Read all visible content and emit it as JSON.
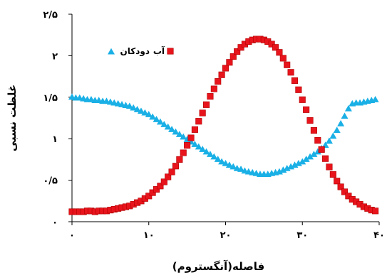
{
  "chart_data": {
    "type": "scatter",
    "xlabel": "فاصله(آنگستروم)",
    "ylabel": "غلظت نسبی",
    "xlim": [
      0,
      40
    ],
    "ylim": [
      0,
      2.5
    ],
    "x_ticks": [
      0,
      10,
      20,
      30,
      40
    ],
    "x_tick_labels": [
      "۰",
      "۱۰",
      "۲۰",
      "۳۰",
      "۴۰"
    ],
    "y_ticks": [
      0,
      0.5,
      1,
      1.5,
      2,
      2.5
    ],
    "y_tick_labels": [
      "۰",
      "۰/۵",
      "۱",
      "۱/۵",
      "۲",
      "۲/۵"
    ],
    "grid": false,
    "legend_position": "top-left",
    "series": [
      {
        "name": "آب",
        "marker": "square",
        "color": "#e8141c",
        "x": [
          0,
          0.5,
          1,
          1.5,
          2,
          2.5,
          3,
          3.5,
          4,
          4.5,
          5,
          5.5,
          6,
          6.5,
          7,
          7.5,
          8,
          8.5,
          9,
          9.5,
          10,
          10.5,
          11,
          11.5,
          12,
          12.5,
          13,
          13.5,
          14,
          14.5,
          15,
          15.5,
          16,
          16.5,
          17,
          17.5,
          18,
          18.5,
          19,
          19.5,
          20,
          20.5,
          21,
          21.5,
          22,
          22.5,
          23,
          23.5,
          24,
          24.5,
          25,
          25.5,
          26,
          26.5,
          27,
          27.5,
          28,
          28.5,
          29,
          29.5,
          30,
          30.5,
          31,
          31.5,
          32,
          32.5,
          33,
          33.5,
          34,
          34.5,
          35,
          35.5,
          36,
          36.5,
          37,
          37.5,
          38,
          38.5,
          39,
          39.5
        ],
        "y": [
          0.12,
          0.12,
          0.12,
          0.12,
          0.13,
          0.13,
          0.12,
          0.13,
          0.13,
          0.13,
          0.14,
          0.15,
          0.16,
          0.17,
          0.18,
          0.19,
          0.21,
          0.23,
          0.25,
          0.28,
          0.31,
          0.35,
          0.39,
          0.43,
          0.48,
          0.54,
          0.6,
          0.67,
          0.75,
          0.83,
          0.92,
          1.01,
          1.11,
          1.21,
          1.31,
          1.41,
          1.51,
          1.6,
          1.69,
          1.77,
          1.85,
          1.92,
          1.99,
          2.05,
          2.1,
          2.14,
          2.17,
          2.19,
          2.2,
          2.2,
          2.19,
          2.17,
          2.14,
          2.1,
          2.04,
          1.97,
          1.89,
          1.8,
          1.7,
          1.59,
          1.47,
          1.35,
          1.22,
          1.1,
          0.98,
          0.87,
          0.76,
          0.66,
          0.57,
          0.49,
          0.42,
          0.36,
          0.31,
          0.27,
          0.24,
          0.21,
          0.18,
          0.16,
          0.14,
          0.13
        ]
      },
      {
        "name": "دودکان",
        "marker": "triangle",
        "color": "#1ab0e6",
        "x": [
          0,
          0.5,
          1,
          1.5,
          2,
          2.5,
          3,
          3.5,
          4,
          4.5,
          5,
          5.5,
          6,
          6.5,
          7,
          7.5,
          8,
          8.5,
          9,
          9.5,
          10,
          10.5,
          11,
          11.5,
          12,
          12.5,
          13,
          13.5,
          14,
          14.5,
          15,
          15.5,
          16,
          16.5,
          17,
          17.5,
          18,
          18.5,
          19,
          19.5,
          20,
          20.5,
          21,
          21.5,
          22,
          22.5,
          23,
          23.5,
          24,
          24.5,
          25,
          25.5,
          26,
          26.5,
          27,
          27.5,
          28,
          28.5,
          29,
          29.5,
          30,
          30.5,
          31,
          31.5,
          32,
          32.5,
          33,
          33.5,
          34,
          34.5,
          35,
          35.5,
          36,
          36.5,
          37,
          37.5,
          38,
          38.5,
          39,
          39.5
        ],
        "y": [
          1.5,
          1.49,
          1.49,
          1.48,
          1.47,
          1.47,
          1.46,
          1.46,
          1.45,
          1.45,
          1.44,
          1.43,
          1.42,
          1.41,
          1.4,
          1.39,
          1.37,
          1.35,
          1.33,
          1.31,
          1.29,
          1.26,
          1.23,
          1.2,
          1.17,
          1.14,
          1.11,
          1.08,
          1.05,
          1.02,
          0.99,
          0.96,
          0.93,
          0.9,
          0.87,
          0.84,
          0.81,
          0.78,
          0.75,
          0.72,
          0.7,
          0.68,
          0.66,
          0.64,
          0.63,
          0.61,
          0.6,
          0.59,
          0.58,
          0.57,
          0.57,
          0.57,
          0.58,
          0.59,
          0.6,
          0.62,
          0.64,
          0.66,
          0.68,
          0.7,
          0.72,
          0.75,
          0.78,
          0.81,
          0.84,
          0.88,
          0.92,
          0.97,
          1.03,
          1.1,
          1.18,
          1.27,
          1.36,
          1.42,
          1.43,
          1.43,
          1.44,
          1.45,
          1.46,
          1.47
        ]
      }
    ]
  }
}
